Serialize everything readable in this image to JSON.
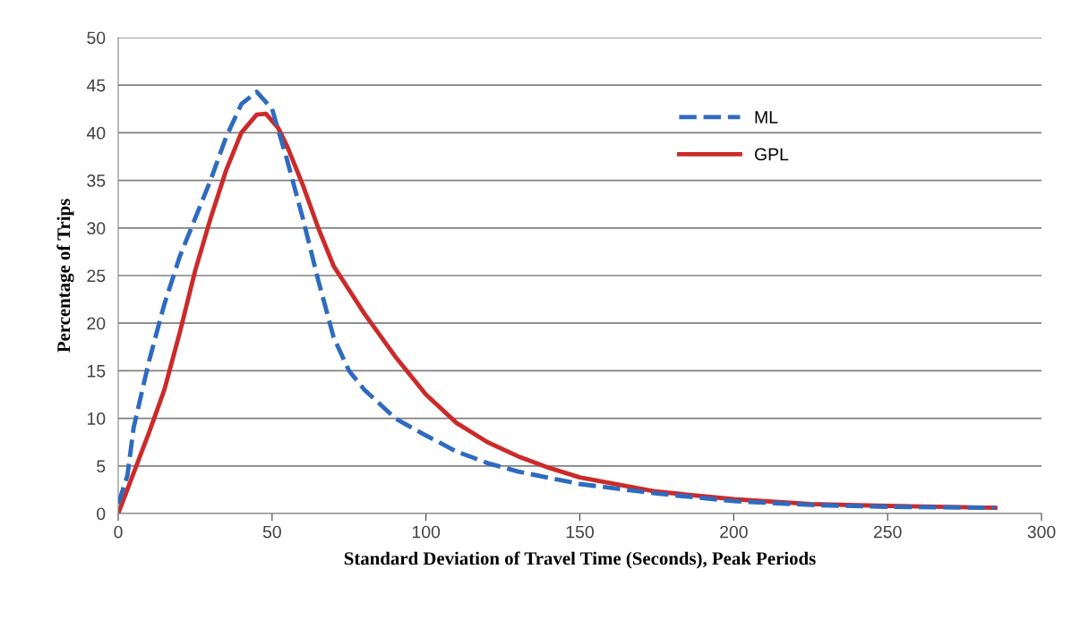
{
  "chart_data": {
    "type": "line",
    "xlabel": "Standard Deviation of Travel Time (Seconds), Peak Periods",
    "ylabel": "Percentage of Trips",
    "xlim": [
      0,
      300
    ],
    "xticks": [
      0,
      50,
      100,
      150,
      200,
      250,
      300
    ],
    "ylim": [
      0,
      50
    ],
    "yticks": [
      0,
      5,
      10,
      15,
      20,
      25,
      30,
      35,
      40,
      45,
      50
    ],
    "grid": "y",
    "legend": "top right",
    "marker": "none",
    "series": [
      {
        "name": "ML",
        "color": "#2e6bc0",
        "line_style": "dashed",
        "x": [
          0,
          3,
          5,
          10,
          15,
          20,
          25,
          30,
          35,
          40,
          45,
          50,
          55,
          60,
          65,
          70,
          75,
          80,
          90,
          100,
          110,
          120,
          130,
          150,
          175,
          200,
          225,
          250,
          285
        ],
        "values": [
          1,
          4,
          9,
          16,
          22,
          27,
          31,
          35,
          39.5,
          43,
          44.3,
          42.5,
          37,
          31,
          24.5,
          18.5,
          15,
          13,
          10,
          8.2,
          6.5,
          5.3,
          4.4,
          3.1,
          2.1,
          1.3,
          0.9,
          0.7,
          0.6
        ]
      },
      {
        "name": "GPL",
        "color": "#cc2a2a",
        "line_style": "solid",
        "x": [
          0,
          10,
          15,
          20,
          25,
          30,
          35,
          40,
          45,
          48,
          52,
          55,
          60,
          65,
          70,
          75,
          80,
          90,
          100,
          110,
          120,
          130,
          140,
          150,
          175,
          200,
          225,
          250,
          285
        ],
        "values": [
          0,
          8.5,
          13,
          19,
          25.5,
          31,
          36,
          40,
          41.9,
          42,
          40.5,
          38.5,
          34.5,
          30,
          26,
          23.5,
          21,
          16.5,
          12.5,
          9.5,
          7.5,
          6,
          4.8,
          3.8,
          2.3,
          1.5,
          1,
          0.8,
          0.6
        ]
      }
    ]
  }
}
